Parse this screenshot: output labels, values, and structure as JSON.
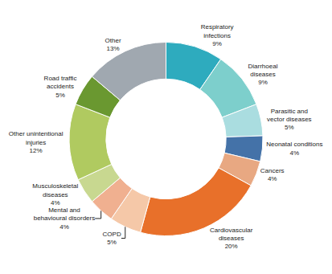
{
  "chart_data": {
    "type": "donut",
    "categories": [
      "Respiratory\ninfections\n9%",
      "Diarrhoeal\ndiseases\n9%",
      "Parasitic and\nvector diseases\n5%",
      "Neonatal conditions\n4%",
      "Cancers\n4%",
      "Cardiovascular\ndiseases\n20%",
      "COPD\n5%",
      "Mental and\nbehavioural disorders\n4%",
      "Musculoskeletal\ndiseases\n4%",
      "Other unintentional\ninjuries\n12%",
      "Road traffic\naccidents\n5%",
      "Other\n13%"
    ],
    "values": [
      9,
      9,
      5,
      4,
      4,
      20,
      5,
      4,
      4,
      12,
      5,
      13
    ],
    "colors": [
      "#2eabbe",
      "#7dcfcc",
      "#aadde0",
      "#4472a8",
      "#e8a882",
      "#e8702a",
      "#f5c8a8",
      "#f0b090",
      "#c8d890",
      "#b0ca60",
      "#6a9830",
      "#a0a8b0"
    ]
  }
}
